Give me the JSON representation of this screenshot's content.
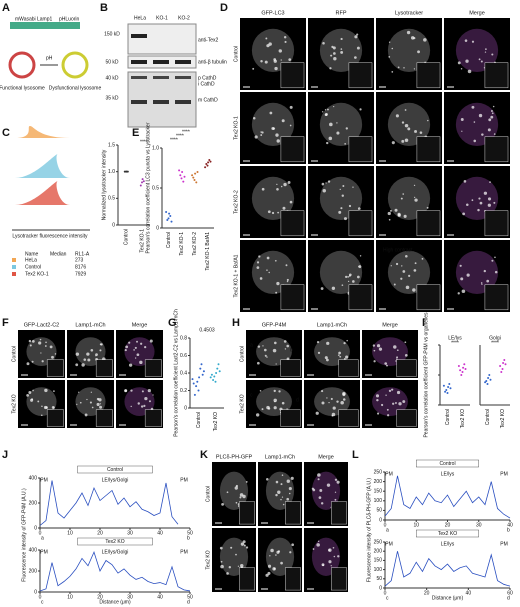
{
  "panels": {
    "A": {
      "letter": "A",
      "construct": [
        "mWasabi",
        "Lamp1",
        "pHLuorin"
      ],
      "ph": "pH",
      "left": "Functional lysosome",
      "right": "Dysfunctional lysosome"
    },
    "B": {
      "letter": "B",
      "lanes": [
        "HeLa",
        "KO-1",
        "KO-2"
      ],
      "markers": [
        "150 kD",
        "50 kD",
        "40 kD",
        "35 kD"
      ],
      "bands": [
        "anti-Tex2",
        "anti-β tubulin",
        "p CathD",
        "i CathD",
        "m CathD"
      ]
    },
    "C": {
      "letter": "C",
      "hist_xlabel": "Lysotracker fluorescence intensity",
      "table": {
        "header": [
          "Name",
          "Median",
          "RL1-A"
        ],
        "rows": [
          [
            "HeLa",
            "273"
          ],
          [
            "Control",
            "8176"
          ],
          [
            "Tex2 KO-1",
            "7929"
          ]
        ]
      },
      "scatter": {
        "ylabel": "Normalized lysotracker intensity",
        "categories": [
          "Control",
          "Tex2 KO-1"
        ],
        "sig": "****",
        "ylim": [
          0,
          1.5
        ],
        "yticks": [
          0,
          {
            "value": 0.5,
            "label": "0.5"
          },
          {
            "value": 1,
            "label": "1.0"
          },
          {
            "value": 1.5,
            "label": "1.5"
          }
        ],
        "values": [
          [
            1,
            1,
            1,
            1
          ],
          [
            0.8,
            0.86,
            0.74,
            0.82
          ]
        ]
      }
    },
    "D": {
      "letter": "D",
      "headers": [
        "GFP-LC3",
        "RFP",
        "Lysotracker",
        "Merge"
      ],
      "rows": [
        "Control",
        "Tex2 KO-1",
        "Tex2 KO-2",
        "Tex2 KO-1 + BafA1"
      ],
      "note": "High contrast"
    },
    "E": {
      "letter": "E",
      "ylabel": "Pearson's correlation coefficient LC3 puncta vs Lysotracker",
      "categories": [
        "Control",
        "Tex2 KO-1",
        "Tex2 KO-2",
        "Tex2 KO-1 BafA1"
      ],
      "sig": [
        "****",
        "****",
        "****"
      ],
      "ylim": [
        0,
        1
      ],
      "yticks": [
        0,
        {
          "value": 0.5,
          "label": "0.5"
        },
        {
          "value": 1,
          "label": "1.0"
        }
      ],
      "values": [
        [
          0.12,
          0.18,
          0.1,
          0.15,
          0.2,
          0.08
        ],
        [
          0.62,
          0.7,
          0.66,
          0.58,
          0.72,
          0.64
        ],
        [
          0.6,
          0.68,
          0.63,
          0.57,
          0.66,
          0.7
        ],
        [
          0.78,
          0.82,
          0.8,
          0.85,
          0.76,
          0.83
        ]
      ]
    },
    "F": {
      "letter": "F",
      "headers": [
        "GFP-Lact2-C2",
        "Lamp1-mCh",
        "Merge"
      ],
      "rows": [
        "Control",
        "Tex2 KO"
      ]
    },
    "G": {
      "letter": "G",
      "ylabel": "Pearson's correlation coefficient Lact2-C2 vs Lamp1-mCh",
      "categories": [
        "Control",
        "Tex2 KO"
      ],
      "p": "0.4503",
      "ylim": [
        0,
        0.8
      ],
      "yticks": [
        0,
        {
          "value": 0.2,
          "label": "0.2"
        },
        {
          "value": 0.4,
          "label": "0.4"
        },
        {
          "value": 0.6,
          "label": "0.6"
        },
        {
          "value": 0.8,
          "label": "0.8"
        }
      ],
      "values": [
        [
          0.2,
          0.35,
          0.3,
          0.45,
          0.25,
          0.5,
          0.15,
          0.38,
          0.28,
          0.42,
          0.33
        ],
        [
          0.3,
          0.4,
          0.36,
          0.45,
          0.32,
          0.5,
          0.38,
          0.42,
          0.35
        ]
      ]
    },
    "H": {
      "letter": "H",
      "headers": [
        "GFP-P4M",
        "Lamp1-mCh",
        "Merge"
      ],
      "rows": [
        "Control",
        "Tex2 KO"
      ],
      "marks": [
        "a",
        "b",
        "c",
        "d"
      ]
    },
    "I": {
      "letter": "I",
      "ylabel": "Pearson's correlation coefficient GFP-P4M vs organelles",
      "groups": [
        {
          "title": "LE/lys",
          "sig": "****",
          "values": [
            [
              0.2,
              0.3,
              0.25,
              0.35,
              0.22,
              0.28,
              0.32
            ],
            [
              0.55,
              0.62,
              0.5,
              0.68,
              0.58,
              0.6,
              0.65
            ]
          ]
        },
        {
          "title": "Golgi",
          "sig": "****",
          "values": [
            [
              0.35,
              0.45,
              0.4,
              0.5,
              0.38,
              0.42
            ],
            [
              0.6,
              0.7,
              0.55,
              0.75,
              0.65,
              0.68
            ]
          ]
        }
      ],
      "categories": [
        "Control",
        "Tex2 KO"
      ],
      "ylim": [
        0,
        1
      ],
      "yticks": [
        0,
        {
          "value": 0.5,
          "label": "0.5"
        },
        {
          "value": 1,
          "label": "1.0"
        }
      ]
    },
    "J": {
      "letter": "J",
      "ylabel": "Fluorescence intensity of GFP-P4M (A.U.)",
      "xlabel": "Distance (μm)",
      "plots": [
        {
          "title": "Control",
          "labels": [
            "PM",
            "LE/lys/Golgi",
            "PM"
          ],
          "ends": [
            "a",
            "b"
          ],
          "xlim": [
            0,
            50
          ],
          "xticks": [
            0,
            10,
            20,
            30,
            40,
            50
          ],
          "ylim": [
            0,
            400
          ],
          "yticks": [
            0,
            200,
            400
          ],
          "x": [
            0,
            2,
            4,
            6,
            8,
            10,
            12,
            14,
            16,
            18,
            20,
            22,
            24,
            26,
            28,
            30,
            32,
            34,
            36,
            38,
            40,
            42,
            44,
            46
          ],
          "values": [
            20,
            60,
            380,
            120,
            80,
            140,
            200,
            280,
            180,
            320,
            220,
            260,
            300,
            190,
            240,
            170,
            210,
            150,
            130,
            100,
            120,
            360,
            90,
            30
          ]
        },
        {
          "title": "Tex2 KO",
          "labels": [
            "PM",
            "LE/lys/Golgi",
            "PM"
          ],
          "ends": [
            "c",
            "d"
          ],
          "xlim": [
            0,
            50
          ],
          "xticks": [
            0,
            10,
            20,
            30,
            40,
            50
          ],
          "ylim": [
            0,
            400
          ],
          "yticks": [
            0,
            200,
            400
          ],
          "x": [
            0,
            2,
            4,
            6,
            8,
            10,
            12,
            14,
            16,
            18,
            20,
            22,
            24,
            26,
            28,
            30,
            32,
            34,
            36,
            38,
            40,
            42,
            44,
            46,
            48,
            50
          ],
          "values": [
            10,
            30,
            280,
            60,
            100,
            150,
            220,
            320,
            250,
            380,
            200,
            300,
            260,
            180,
            220,
            160,
            120,
            140,
            100,
            80,
            90,
            70,
            240,
            50,
            20,
            10
          ]
        }
      ]
    },
    "K": {
      "letter": "K",
      "headers": [
        "PLCδ-PH-GFP",
        "Lamp1-mCh",
        "Merge"
      ],
      "rows": [
        "Control",
        "Tex2 KO"
      ]
    },
    "L": {
      "letter": "L",
      "ylabel": "Fluorescence intensity of PLCδ-PH-GFP (A.U.)",
      "xlabel": "Distance (μm)",
      "plots": [
        {
          "title": "Control",
          "labels": [
            "PM",
            "LE/lys",
            "PM"
          ],
          "ends": [
            "a",
            "b"
          ],
          "xlim": [
            0,
            40
          ],
          "xticks": [
            0,
            10,
            20,
            30,
            40
          ],
          "ylim": [
            0,
            250
          ],
          "yticks": [
            0,
            50,
            100,
            150,
            200,
            250
          ],
          "x": [
            0,
            2,
            4,
            6,
            8,
            10,
            12,
            14,
            16,
            18,
            20,
            22,
            24,
            26,
            28,
            30,
            32,
            34,
            36,
            38,
            40
          ],
          "values": [
            20,
            60,
            230,
            80,
            60,
            120,
            80,
            140,
            100,
            90,
            130,
            70,
            110,
            150,
            90,
            120,
            80,
            200,
            60,
            30,
            10
          ]
        },
        {
          "title": "Tex2 KO",
          "labels": [
            "PM",
            "LE/lys",
            "PM"
          ],
          "ends": [
            "c",
            "d"
          ],
          "xlim": [
            0,
            60
          ],
          "xticks": [
            0,
            20,
            40,
            60
          ],
          "ylim": [
            0,
            250
          ],
          "yticks": [
            0,
            50,
            100,
            150,
            200,
            250
          ],
          "x": [
            0,
            3,
            6,
            9,
            12,
            15,
            18,
            21,
            24,
            27,
            30,
            33,
            36,
            39,
            42,
            45,
            48,
            51,
            54,
            57,
            60
          ],
          "values": [
            10,
            40,
            200,
            60,
            80,
            140,
            90,
            160,
            120,
            100,
            130,
            90,
            110,
            120,
            80,
            70,
            60,
            180,
            40,
            20,
            10
          ]
        }
      ]
    }
  }
}
